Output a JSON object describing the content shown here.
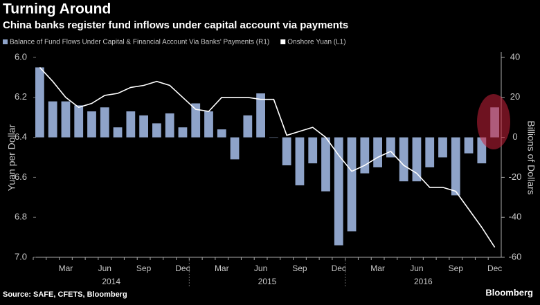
{
  "chart_data": {
    "type": "bar",
    "title": "Turning Around",
    "subtitle": "China banks register fund inflows under capital account via payments",
    "y_label": "Yuan per Dollar",
    "y2_label": "Billions of Dollars",
    "source": "Source: SAFE, CFETS, Bloomberg",
    "brand": "Bloomberg",
    "categories": [
      null,
      null,
      "Mar",
      null,
      null,
      "Jun",
      null,
      null,
      "Sep",
      null,
      null,
      "Dec",
      null,
      null,
      "Mar",
      null,
      null,
      "Jun",
      null,
      null,
      "Sep",
      null,
      null,
      "Dec",
      null,
      null,
      "Mar",
      null,
      null,
      "Jun",
      null,
      null,
      "Sep",
      null,
      null,
      "Dec"
    ],
    "years": [
      "2014",
      "2015",
      "2016"
    ],
    "ylim": [
      6.0,
      7.0
    ],
    "y_inverted": true,
    "yticks": [
      {
        "value": 6.0,
        "label": "6.0"
      },
      6.2,
      6.4,
      6.6,
      6.8,
      {
        "value": 7.0,
        "label": "7.0"
      }
    ],
    "y2lim": [
      -60,
      40
    ],
    "y2ticks": [
      -60,
      -40,
      -20,
      0,
      20,
      40
    ],
    "series": [
      {
        "name": "Balance of Fund Flows Under Capital & Financial Account Via Banks' Payments (R1)",
        "type": "bar",
        "axis": "y2",
        "color": "#8ea3c9",
        "values": [
          35,
          18,
          18,
          16,
          13,
          15,
          5,
          13,
          11,
          7,
          12,
          5,
          17,
          13,
          4,
          -11,
          11,
          22,
          0,
          -14,
          -24,
          -13,
          -27,
          -54,
          -47,
          -18,
          -15,
          -10,
          -22,
          -22,
          -15,
          -10,
          -29,
          -8,
          -13,
          15
        ]
      },
      {
        "name": "Onshore Yuan (L1)",
        "type": "line",
        "axis": "y",
        "color": "#ffffff",
        "values": [
          6.05,
          6.12,
          6.2,
          6.25,
          6.23,
          6.19,
          6.18,
          6.15,
          6.14,
          6.12,
          6.14,
          6.2,
          6.26,
          6.27,
          6.2,
          6.2,
          6.2,
          6.21,
          6.21,
          6.39,
          6.37,
          6.35,
          6.4,
          6.49,
          6.57,
          6.54,
          6.5,
          6.47,
          6.54,
          6.58,
          6.65,
          6.65,
          6.67,
          6.76,
          6.85,
          6.95
        ]
      }
    ]
  }
}
